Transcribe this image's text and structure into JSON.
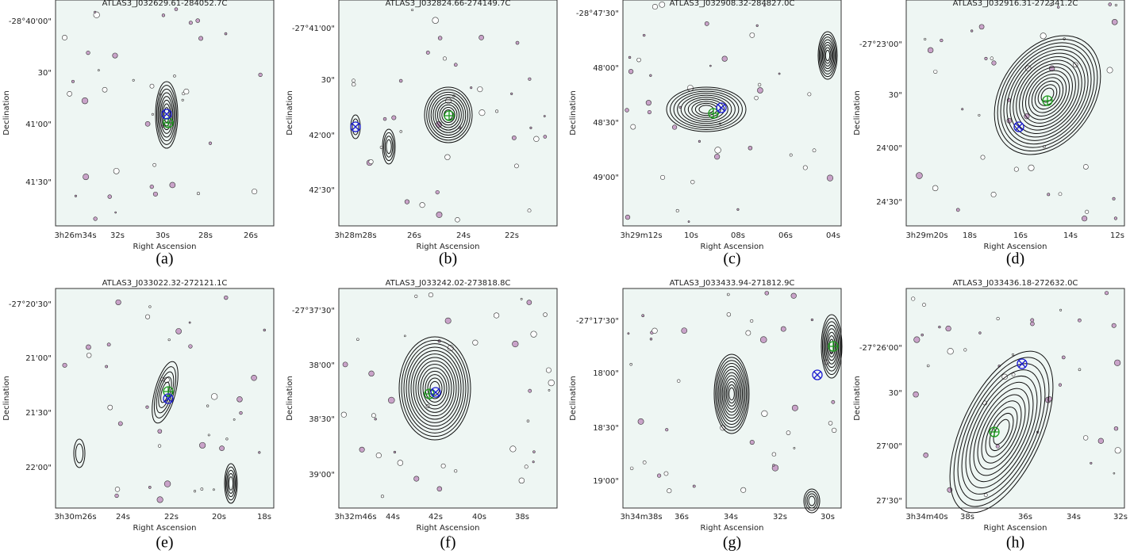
{
  "panels": [
    {
      "title": "ATLAS3_J032629.61-284052.7C",
      "yticks": [
        "-28°40'00\"",
        "30\"",
        "41'00\"",
        "41'30\""
      ],
      "xticks": [
        "3h26m34s",
        "32s",
        "30s",
        "28s",
        "26s"
      ],
      "ylabel": "Declination",
      "xlabel": "Right Ascension",
      "label": "(a)"
    },
    {
      "title": "ATLAS3_J032824.66-274149.7C",
      "yticks": [
        "-27°41'00\"",
        "30\"",
        "42'00\"",
        "42'30\""
      ],
      "xticks": [
        "3h28m28s",
        "26s",
        "24s",
        "22s"
      ],
      "ylabel": "Declination",
      "xlabel": "Right Ascension",
      "label": "(b)"
    },
    {
      "title": "ATLAS3_J032908.32-284827.0C",
      "yticks": [
        "-28°47'30\"",
        "48'00\"",
        "48'30\"",
        "49'00\""
      ],
      "xticks": [
        "3h29m12s",
        "10s",
        "08s",
        "06s",
        "04s"
      ],
      "ylabel": "Declination",
      "xlabel": "Right Ascension",
      "label": "(c)"
    },
    {
      "title": "ATLAS3_J032916.31-272341.2C",
      "yticks": [
        "-27°23'00\"",
        "30\"",
        "24'00\"",
        "24'30\""
      ],
      "xticks": [
        "3h29m20s",
        "18s",
        "16s",
        "14s",
        "12s"
      ],
      "ylabel": "Declination",
      "xlabel": "Right Ascension",
      "label": "(d)"
    },
    {
      "title": "ATLAS3_J033022.32-272121.1C",
      "yticks": [
        "-27°20'30\"",
        "21'00\"",
        "21'30\"",
        "22'00\""
      ],
      "xticks": [
        "3h30m26s",
        "24s",
        "22s",
        "20s",
        "18s"
      ],
      "ylabel": "Declination",
      "xlabel": "Right Ascension",
      "label": "(e)"
    },
    {
      "title": "ATLAS3_J033242.02-273818.8C",
      "yticks": [
        "-27°37'30\"",
        "38'00\"",
        "38'30\"",
        "39'00\""
      ],
      "xticks": [
        "3h32m46s",
        "44s",
        "42s",
        "40s",
        "38s"
      ],
      "ylabel": "Declination",
      "xlabel": "Right Ascension",
      "label": "(f)"
    },
    {
      "title": "ATLAS3_J033433.94-271812.9C",
      "yticks": [
        "-27°17'30\"",
        "18'00\"",
        "18'30\"",
        "19'00\""
      ],
      "xticks": [
        "3h34m38s",
        "36s",
        "34s",
        "32s",
        "30s"
      ],
      "ylabel": "Declination",
      "xlabel": "Right Ascension",
      "label": "(g)"
    },
    {
      "title": "ATLAS3_J033436.18-272632.0C",
      "yticks": [
        "-27°26'00\"",
        "30\"",
        "27'00\"",
        "27'30\""
      ],
      "xticks": [
        "3h34m40s",
        "38s",
        "36s",
        "34s",
        "32s"
      ],
      "ylabel": "Declination",
      "xlabel": "Right Ascension",
      "label": "(h)"
    }
  ]
}
